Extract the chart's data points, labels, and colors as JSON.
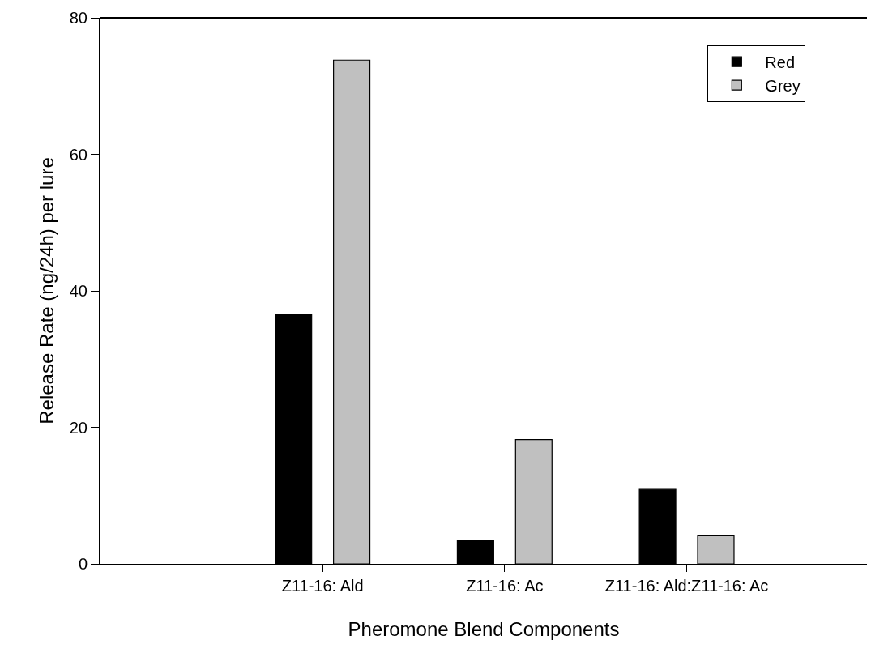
{
  "chart_data": {
    "type": "bar",
    "xlabel": "Pheromone Blend Components",
    "ylabel": "Release Rate (ng/24h) per lure",
    "categories": [
      "Z11-16: Ald",
      "Z11-16: Ac",
      "Z11-16: Ald:Z11-16: Ac"
    ],
    "series": [
      {
        "name": "Red",
        "color": "#000000",
        "values": [
          36.5,
          3.4,
          10.9
        ]
      },
      {
        "name": "Grey",
        "color": "#c0c0c0",
        "values": [
          73.8,
          18.2,
          4.1
        ]
      }
    ],
    "ylim": [
      0,
      80
    ],
    "yticks": [
      0,
      20,
      40,
      60,
      80
    ],
    "legend": "top right"
  }
}
